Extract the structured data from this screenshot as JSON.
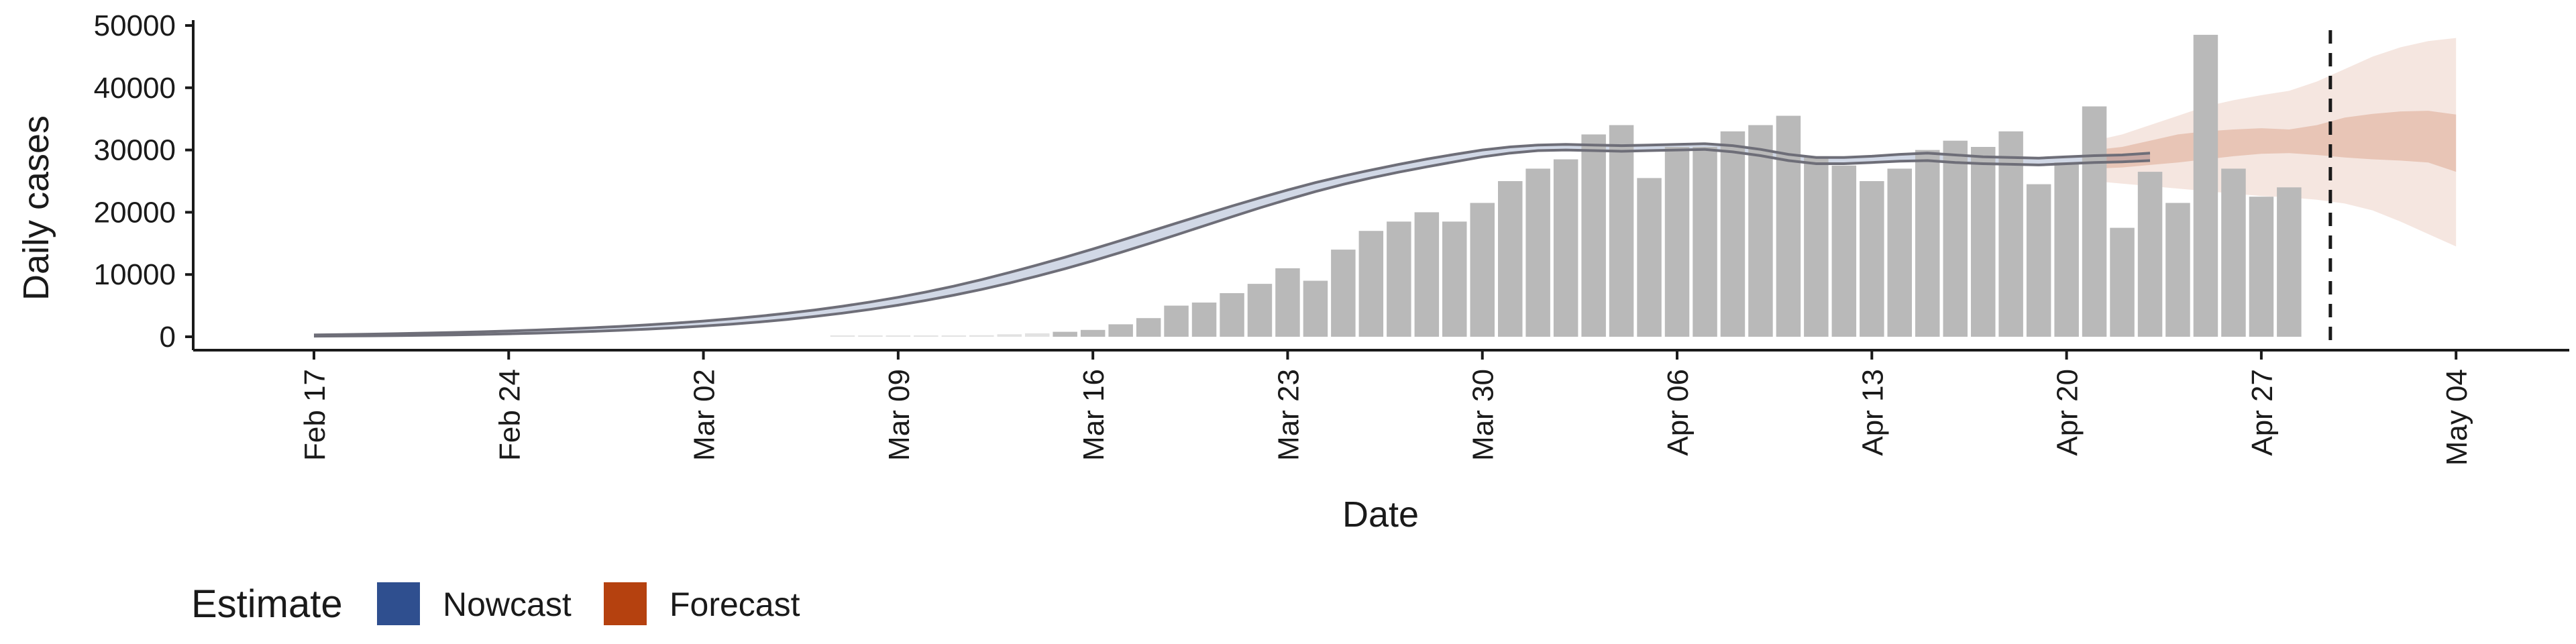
{
  "chart_data": {
    "type": "bar",
    "xlabel": "Date",
    "ylabel": "Daily cases",
    "ylim": [
      0,
      50000
    ],
    "yticks": [
      0,
      10000,
      20000,
      30000,
      40000,
      50000
    ],
    "xtick_labels": [
      "Feb 17",
      "Feb 24",
      "Mar 02",
      "Mar 09",
      "Mar 16",
      "Mar 23",
      "Mar 30",
      "Apr 06",
      "Apr 13",
      "Apr 20",
      "Apr 27",
      "May 04"
    ],
    "x_start": "2020-02-17",
    "forecast_start": "2020-04-29",
    "bars": {
      "start": "2020-03-07",
      "values": [
        0,
        10,
        50,
        100,
        150,
        250,
        400,
        550,
        800,
        1100,
        2000,
        3000,
        5000,
        5500,
        7000,
        8500,
        11000,
        9000,
        14000,
        17000,
        18500,
        20000,
        18500,
        21500,
        25000,
        27000,
        28500,
        32500,
        34000,
        25500,
        30500,
        30500,
        33000,
        34000,
        35500,
        29000,
        27500,
        25000,
        27000,
        30000,
        31500,
        30500,
        33000,
        24500,
        28000,
        37000,
        17500,
        26500,
        21500,
        48500,
        27000,
        22500,
        24000
      ]
    },
    "series": [
      {
        "name": "Nowcast",
        "color": "#2f4f8f",
        "start": "2020-02-17",
        "lower": [
          100,
          120,
          150,
          190,
          240,
          300,
          380,
          470,
          580,
          710,
          860,
          1030,
          1230,
          1460,
          1720,
          2020,
          2370,
          2780,
          3250,
          3790,
          4400,
          5080,
          5840,
          6680,
          7610,
          8630,
          9740,
          10930,
          12200,
          13540,
          14940,
          16370,
          17820,
          19280,
          20700,
          22050,
          23320,
          24480,
          25520,
          26440,
          27300,
          28100,
          28900,
          29500,
          29900,
          30000,
          29900,
          29800,
          29900,
          30000,
          30100,
          29700,
          29100,
          28300,
          27800,
          27800,
          28000,
          28200,
          28300,
          28000,
          27800,
          27700,
          27600,
          27800,
          28000,
          28100,
          28300
        ],
        "upper": [
          300,
          350,
          420,
          500,
          590,
          690,
          800,
          930,
          1080,
          1250,
          1440,
          1660,
          1910,
          2200,
          2520,
          2880,
          3300,
          3770,
          4300,
          4900,
          5580,
          6340,
          7190,
          8130,
          9180,
          10320,
          11520,
          12780,
          14090,
          15450,
          16840,
          18240,
          19630,
          21000,
          22320,
          23580,
          24760,
          25820,
          26790,
          27690,
          28540,
          29300,
          30000,
          30500,
          30800,
          30900,
          30800,
          30700,
          30800,
          30900,
          31000,
          30700,
          30100,
          29300,
          28800,
          28800,
          29000,
          29300,
          29500,
          29200,
          28900,
          28800,
          28700,
          28900,
          29100,
          29200,
          29500
        ]
      },
      {
        "name": "Forecast",
        "color": "#b5410f",
        "start": "2020-04-21",
        "lower50": [
          27000,
          27200,
          27600,
          28000,
          28500,
          29000,
          29400,
          29500,
          29200,
          28800,
          28500,
          28300,
          28000,
          26500
        ],
        "upper50": [
          30000,
          30500,
          31500,
          32500,
          33000,
          33300,
          33500,
          33300,
          34000,
          35200,
          35800,
          36200,
          36300,
          35700
        ],
        "lower90": [
          25000,
          24600,
          24200,
          23800,
          23400,
          23000,
          22600,
          22400,
          22000,
          21400,
          20300,
          18500,
          16500,
          14500
        ],
        "upper90": [
          31500,
          32500,
          34000,
          35500,
          37000,
          38000,
          38800,
          39500,
          41000,
          43000,
          45000,
          46500,
          47500,
          48000
        ]
      }
    ],
    "legend": {
      "title": "Estimate",
      "position": "bottom-left",
      "entries": [
        "Nowcast",
        "Forecast"
      ]
    }
  }
}
